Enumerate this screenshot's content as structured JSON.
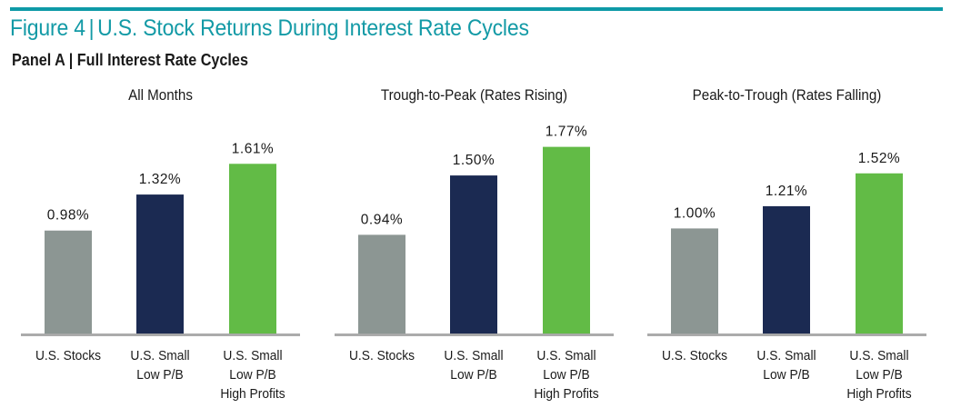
{
  "figure": {
    "label": "Figure 4",
    "separator": "|",
    "title": "U.S. Stock Returns During Interest Rate Cycles",
    "accent_color": "#0e9aa7"
  },
  "panel": {
    "label": "Panel A",
    "separator": "|",
    "title": "Full Interest Rate Cycles"
  },
  "chart_data": [
    {
      "type": "bar",
      "title": "All Months",
      "categories": [
        "U.S. Stocks",
        "U.S. Small Low P/B",
        "U.S. Small Low P/B High Profits"
      ],
      "category_lines": [
        [
          "U.S. Stocks"
        ],
        [
          "U.S. Small",
          "Low P/B"
        ],
        [
          "U.S. Small",
          "Low P/B",
          "High Profits"
        ]
      ],
      "values": [
        0.98,
        1.32,
        1.61
      ],
      "labels": [
        "0.98%",
        "1.32%",
        "1.61%"
      ],
      "colors": [
        "#8c9693",
        "#1b2a52",
        "#62bb46"
      ],
      "unit": "%",
      "xlabel": "",
      "ylabel": "",
      "ylim": [
        0,
        2.0
      ],
      "grid": false,
      "legend": "none"
    },
    {
      "type": "bar",
      "title": "Trough-to-Peak (Rates Rising)",
      "categories": [
        "U.S. Stocks",
        "U.S. Small Low P/B",
        "U.S. Small Low P/B High Profits"
      ],
      "category_lines": [
        [
          "U.S. Stocks"
        ],
        [
          "U.S. Small",
          "Low P/B"
        ],
        [
          "U.S. Small",
          "Low P/B",
          "High Profits"
        ]
      ],
      "values": [
        0.94,
        1.5,
        1.77
      ],
      "labels": [
        "0.94%",
        "1.50%",
        "1.77%"
      ],
      "colors": [
        "#8c9693",
        "#1b2a52",
        "#62bb46"
      ],
      "unit": "%",
      "xlabel": "",
      "ylabel": "",
      "ylim": [
        0,
        2.0
      ],
      "grid": false,
      "legend": "none"
    },
    {
      "type": "bar",
      "title": "Peak-to-Trough (Rates Falling)",
      "categories": [
        "U.S. Stocks",
        "U.S. Small Low P/B",
        "U.S. Small Low P/B High Profits"
      ],
      "category_lines": [
        [
          "U.S. Stocks"
        ],
        [
          "U.S. Small",
          "Low P/B"
        ],
        [
          "U.S. Small",
          "Low P/B",
          "High Profits"
        ]
      ],
      "values": [
        1.0,
        1.21,
        1.52
      ],
      "labels": [
        "1.00%",
        "1.21%",
        "1.52%"
      ],
      "colors": [
        "#8c9693",
        "#1b2a52",
        "#62bb46"
      ],
      "unit": "%",
      "xlabel": "",
      "ylabel": "",
      "ylim": [
        0,
        2.0
      ],
      "grid": false,
      "legend": "none"
    }
  ]
}
